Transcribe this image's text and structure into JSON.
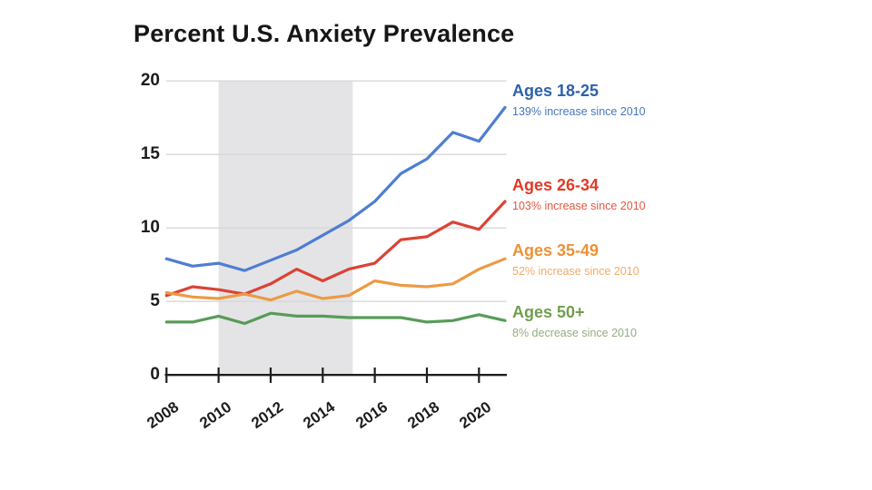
{
  "page": {
    "background": "#ffffff"
  },
  "chart_data": {
    "type": "line",
    "title": "Percent U.S. Anxiety Prevalence",
    "xlabel": "",
    "ylabel": "",
    "ylim": [
      0,
      20
    ],
    "y_ticks": [
      0,
      5,
      10,
      15,
      20
    ],
    "x": [
      2008,
      2009,
      2010,
      2011,
      2012,
      2013,
      2014,
      2015,
      2016,
      2017,
      2018,
      2019,
      2020,
      2021
    ],
    "x_tick_years": [
      2008,
      2010,
      2012,
      2014,
      2016,
      2018,
      2020
    ],
    "grid": "horizontal",
    "legend_position": "right",
    "axis_color": "#1e1e1e",
    "grid_color": "#d7d7d7",
    "shaded_region": {
      "from": 2010,
      "to": 2015,
      "color": "#e4e4e7"
    },
    "series": [
      {
        "id": "ages-18-25",
        "label": "Ages 18-25",
        "sublabel": "139% increase since 2010",
        "line_color": "#4e7ed2",
        "label_color": "#2d61ab",
        "sublabel_color": "#4577bd",
        "values": [
          7.9,
          7.4,
          7.6,
          7.1,
          7.8,
          8.5,
          9.5,
          10.5,
          11.8,
          13.7,
          14.7,
          16.5,
          15.9,
          18.2
        ]
      },
      {
        "id": "ages-26-34",
        "label": "Ages 26-34",
        "sublabel": "103% increase since 2010",
        "line_color": "#db4334",
        "label_color": "#e13a26",
        "sublabel_color": "#e25742",
        "values": [
          5.4,
          6.0,
          5.8,
          5.5,
          6.2,
          7.2,
          6.4,
          7.2,
          7.6,
          9.2,
          9.4,
          10.4,
          9.9,
          11.8
        ]
      },
      {
        "id": "ages-35-49",
        "label": "Ages 35-49",
        "sublabel": "52% increase since 2010",
        "line_color": "#eb9b44",
        "label_color": "#eb9236",
        "sublabel_color": "#f0ab68",
        "values": [
          5.6,
          5.3,
          5.2,
          5.5,
          5.1,
          5.7,
          5.2,
          5.4,
          6.4,
          6.1,
          6.0,
          6.2,
          7.2,
          7.9
        ]
      },
      {
        "id": "ages-50-plus",
        "label": "Ages 50+",
        "sublabel": "8% decrease since 2010",
        "line_color": "#579c57",
        "label_color": "#6f9f4e",
        "sublabel_color": "#92ad7f",
        "values": [
          3.6,
          3.6,
          4.0,
          3.5,
          4.2,
          4.0,
          4.0,
          3.9,
          3.9,
          3.9,
          3.6,
          3.7,
          4.1,
          3.7
        ]
      }
    ]
  }
}
